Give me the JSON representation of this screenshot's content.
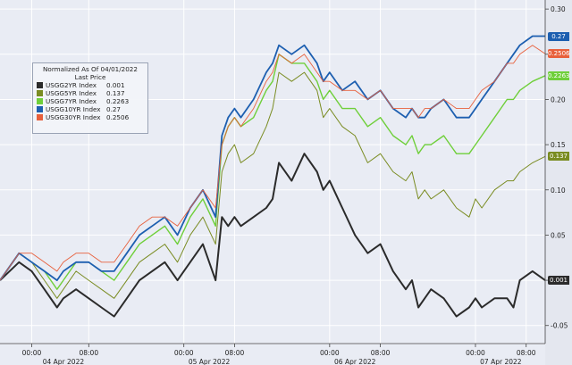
{
  "chart_data": {
    "type": "line",
    "legend": {
      "title_line1": "Normalized As Of 04/01/2022",
      "title_line2": "Last Price",
      "placement": "top-left"
    },
    "y_ticks": [
      "0.30",
      "0.25",
      "0.20",
      "0.15",
      "0.10",
      "0.05",
      "0",
      "-0.05"
    ],
    "ylim": [
      -0.07,
      0.31
    ],
    "xlim": [
      0,
      86
    ],
    "x_ticks": [
      {
        "x": 5,
        "label": "00:00"
      },
      {
        "x": 14,
        "label": "08:00"
      },
      {
        "x": 29,
        "label": "00:00"
      },
      {
        "x": 37,
        "label": "08:00"
      },
      {
        "x": 52,
        "label": "00:00"
      },
      {
        "x": 60,
        "label": "08:00"
      },
      {
        "x": 75,
        "label": "00:00"
      },
      {
        "x": 83,
        "label": "08:00"
      }
    ],
    "date_labels": [
      {
        "x": 10,
        "label": "04 Apr 2022"
      },
      {
        "x": 33,
        "label": "05 Apr 2022"
      },
      {
        "x": 56,
        "label": "06 Apr 2022"
      },
      {
        "x": 79,
        "label": "07 Apr 2022"
      }
    ],
    "series": [
      {
        "name": "USGG2YR Index",
        "last": "0.001",
        "color": "#2b2b2b",
        "width": 2.0,
        "x": [
          0,
          3,
          5,
          7,
          9,
          10,
          12,
          14,
          16,
          18,
          20,
          22,
          24,
          26,
          28,
          30,
          32,
          34,
          35,
          36,
          37,
          38,
          40,
          42,
          43,
          44,
          46,
          48,
          50,
          51,
          52,
          54,
          56,
          58,
          60,
          62,
          64,
          65,
          66,
          67,
          68,
          70,
          72,
          74,
          75,
          76,
          78,
          80,
          81,
          82,
          84,
          86
        ],
        "values": [
          0.0,
          0.02,
          0.01,
          -0.01,
          -0.03,
          -0.02,
          -0.01,
          -0.02,
          -0.03,
          -0.04,
          -0.02,
          0.0,
          0.01,
          0.02,
          0.0,
          0.02,
          0.04,
          0.0,
          0.07,
          0.06,
          0.07,
          0.06,
          0.07,
          0.08,
          0.09,
          0.13,
          0.11,
          0.14,
          0.12,
          0.1,
          0.11,
          0.08,
          0.05,
          0.03,
          0.04,
          0.01,
          -0.01,
          0.0,
          -0.03,
          -0.02,
          -0.01,
          -0.02,
          -0.04,
          -0.03,
          -0.02,
          -0.03,
          -0.02,
          -0.02,
          -0.03,
          0.0,
          0.01,
          0.0
        ]
      },
      {
        "name": "USGG5YR Index",
        "last": "0.137",
        "color": "#7a8c22",
        "width": 1.0,
        "x": [
          0,
          3,
          5,
          7,
          9,
          10,
          12,
          14,
          16,
          18,
          20,
          22,
          24,
          26,
          28,
          30,
          32,
          34,
          35,
          36,
          37,
          38,
          40,
          42,
          43,
          44,
          46,
          48,
          50,
          51,
          52,
          54,
          56,
          58,
          60,
          62,
          64,
          65,
          66,
          67,
          68,
          70,
          72,
          74,
          75,
          76,
          78,
          80,
          81,
          82,
          84,
          86
        ],
        "values": [
          0.0,
          0.03,
          0.02,
          0.0,
          -0.02,
          -0.01,
          0.01,
          0.0,
          -0.01,
          -0.02,
          0.0,
          0.02,
          0.03,
          0.04,
          0.02,
          0.05,
          0.07,
          0.04,
          0.12,
          0.14,
          0.15,
          0.13,
          0.14,
          0.17,
          0.19,
          0.23,
          0.22,
          0.23,
          0.21,
          0.18,
          0.19,
          0.17,
          0.16,
          0.13,
          0.14,
          0.12,
          0.11,
          0.12,
          0.09,
          0.1,
          0.09,
          0.1,
          0.08,
          0.07,
          0.09,
          0.08,
          0.1,
          0.11,
          0.11,
          0.12,
          0.13,
          0.137
        ]
      },
      {
        "name": "USGG7YR Index",
        "last": "0.2263",
        "color": "#6fcf3a",
        "width": 1.4,
        "x": [
          0,
          3,
          5,
          7,
          9,
          10,
          12,
          14,
          16,
          18,
          20,
          22,
          24,
          26,
          28,
          30,
          32,
          34,
          35,
          36,
          37,
          38,
          40,
          42,
          43,
          44,
          46,
          48,
          50,
          51,
          52,
          54,
          56,
          58,
          60,
          62,
          64,
          65,
          66,
          67,
          68,
          70,
          72,
          74,
          75,
          76,
          78,
          80,
          81,
          82,
          84,
          86
        ],
        "values": [
          0.0,
          0.03,
          0.02,
          0.01,
          -0.01,
          0.0,
          0.02,
          0.02,
          0.01,
          0.0,
          0.02,
          0.04,
          0.05,
          0.06,
          0.04,
          0.07,
          0.09,
          0.06,
          0.15,
          0.17,
          0.18,
          0.17,
          0.18,
          0.21,
          0.22,
          0.25,
          0.24,
          0.24,
          0.22,
          0.2,
          0.21,
          0.19,
          0.19,
          0.17,
          0.18,
          0.16,
          0.15,
          0.16,
          0.14,
          0.15,
          0.15,
          0.16,
          0.14,
          0.14,
          0.15,
          0.16,
          0.18,
          0.2,
          0.2,
          0.21,
          0.22,
          0.2263
        ]
      },
      {
        "name": "USGG10YR Index",
        "last": "0.27",
        "color": "#1d5fb0",
        "width": 1.8,
        "x": [
          0,
          3,
          5,
          7,
          9,
          10,
          12,
          14,
          16,
          18,
          20,
          22,
          24,
          26,
          28,
          30,
          32,
          34,
          35,
          36,
          37,
          38,
          40,
          42,
          43,
          44,
          46,
          48,
          50,
          51,
          52,
          54,
          56,
          58,
          60,
          62,
          64,
          65,
          66,
          67,
          68,
          70,
          72,
          74,
          75,
          76,
          78,
          80,
          81,
          82,
          84,
          86
        ],
        "values": [
          0.0,
          0.03,
          0.02,
          0.01,
          0.0,
          0.01,
          0.02,
          0.02,
          0.01,
          0.01,
          0.03,
          0.05,
          0.06,
          0.07,
          0.05,
          0.08,
          0.1,
          0.07,
          0.16,
          0.18,
          0.19,
          0.18,
          0.2,
          0.23,
          0.24,
          0.26,
          0.25,
          0.26,
          0.24,
          0.22,
          0.23,
          0.21,
          0.22,
          0.2,
          0.21,
          0.19,
          0.18,
          0.19,
          0.18,
          0.18,
          0.19,
          0.2,
          0.18,
          0.18,
          0.19,
          0.2,
          0.22,
          0.24,
          0.25,
          0.26,
          0.27,
          0.27
        ]
      },
      {
        "name": "USGG30YR Index",
        "last": "0.2506",
        "color": "#e8603c",
        "width": 0.9,
        "x": [
          0,
          3,
          5,
          7,
          9,
          10,
          12,
          14,
          16,
          18,
          20,
          22,
          24,
          26,
          28,
          30,
          32,
          34,
          35,
          36,
          37,
          38,
          40,
          42,
          43,
          44,
          46,
          48,
          50,
          51,
          52,
          54,
          56,
          58,
          60,
          62,
          64,
          65,
          66,
          67,
          68,
          70,
          72,
          74,
          75,
          76,
          78,
          80,
          81,
          82,
          84,
          86
        ],
        "values": [
          0.0,
          0.03,
          0.03,
          0.02,
          0.01,
          0.02,
          0.03,
          0.03,
          0.02,
          0.02,
          0.04,
          0.06,
          0.07,
          0.07,
          0.06,
          0.08,
          0.1,
          0.08,
          0.15,
          0.17,
          0.18,
          0.17,
          0.19,
          0.22,
          0.23,
          0.25,
          0.24,
          0.25,
          0.23,
          0.22,
          0.22,
          0.21,
          0.21,
          0.2,
          0.21,
          0.19,
          0.19,
          0.19,
          0.18,
          0.19,
          0.19,
          0.2,
          0.19,
          0.19,
          0.2,
          0.21,
          0.22,
          0.24,
          0.24,
          0.25,
          0.26,
          0.2506
        ]
      }
    ]
  }
}
